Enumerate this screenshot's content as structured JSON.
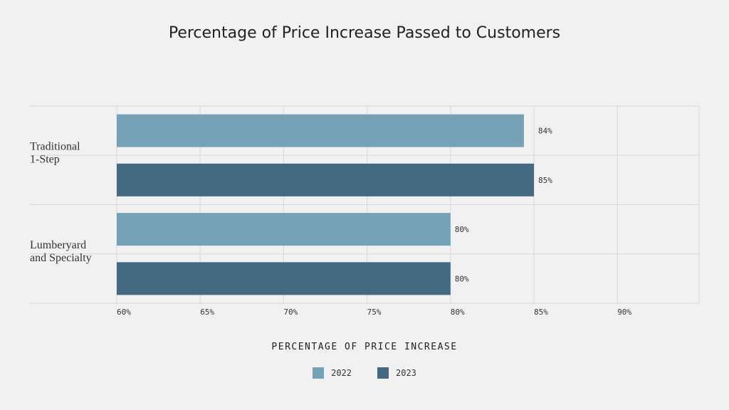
{
  "chart_data": {
    "type": "bar",
    "orientation": "horizontal",
    "title": "Percentage of Price Increase Passed to Customers",
    "xlabel": "PERCENTAGE OF PRICE INCREASE",
    "ylabel": "",
    "categories": [
      [
        "Traditional",
        "1-Step"
      ],
      [
        "Lumberyard",
        "and Specialty"
      ]
    ],
    "series": [
      {
        "name": "2022",
        "color": "#76a2b8",
        "values": [
          84.4,
          80
        ],
        "labels": [
          "84%",
          "80%"
        ]
      },
      {
        "name": "2023",
        "color": "#436a80",
        "values": [
          85,
          80
        ],
        "labels": [
          "85%",
          "80%"
        ]
      }
    ],
    "xlim": [
      60,
      95
    ],
    "xticks": [
      60,
      65,
      70,
      75,
      80,
      85,
      90
    ],
    "xtick_labels": [
      "60%",
      "65%",
      "70%",
      "75%",
      "80%",
      "85%",
      "90%"
    ],
    "grid": true,
    "legend_position": "bottom-center"
  }
}
